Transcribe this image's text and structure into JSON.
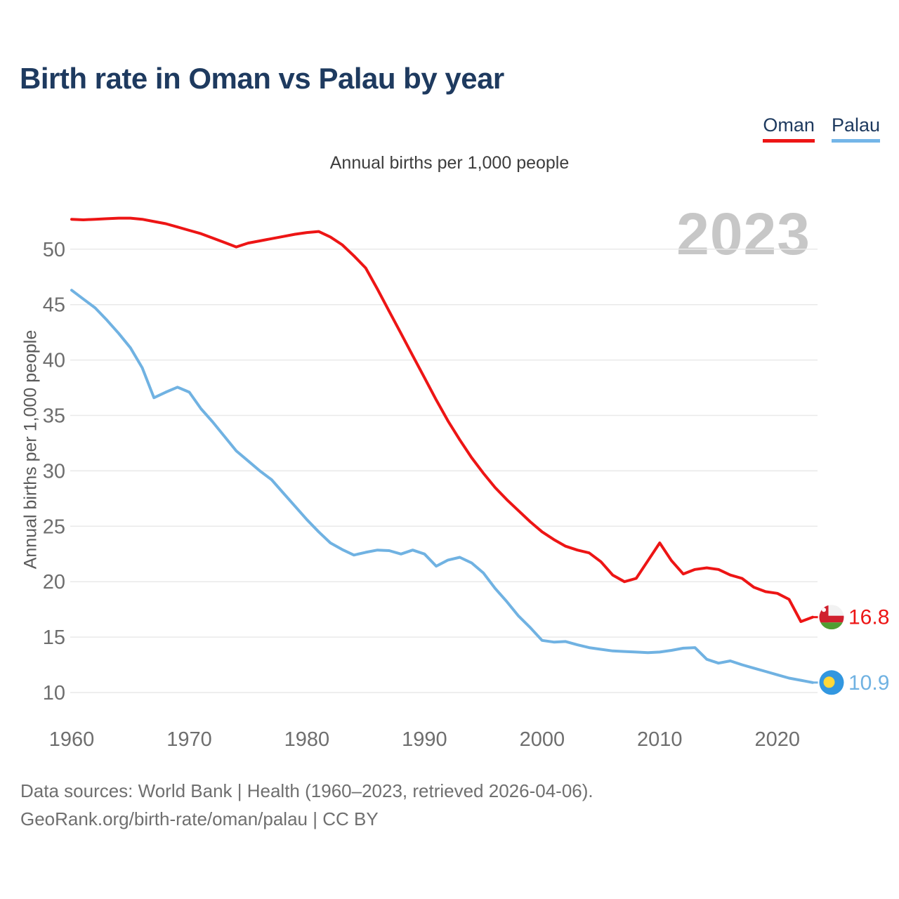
{
  "header": {
    "title": "Birth rate in Oman vs Palau by year"
  },
  "legend": {
    "items": [
      {
        "label": "Oman",
        "color": "#ed1515"
      },
      {
        "label": "Palau",
        "color": "#74b6e8"
      }
    ]
  },
  "subtitle": "Annual births per 1,000 people",
  "watermark": "2023",
  "y_axis_title": "Annual births per 1,000 people",
  "footer": {
    "line1": "Data sources: World Bank | Health (1960–2023, retrieved 2026-04-06).",
    "line2": "GeoRank.org/birth-rate/oman/palau | CC BY"
  },
  "colors": {
    "oman_line": "#ed1515",
    "palau_line": "#70b2e2",
    "grid": "#e9e9e9",
    "tick_text": "#6e6e6e",
    "title_navy": "#1e3a5f",
    "watermark_gray": "#c7c7c7",
    "oman_flag_red": "#d0202e",
    "oman_flag_green": "#4f9e33",
    "palau_flag_blue": "#3297e0",
    "palau_flag_yellow": "#ffd838"
  },
  "chart_data": {
    "type": "line",
    "title": "Birth rate in Oman vs Palau by year",
    "subtitle": "Annual births per 1,000 people",
    "xlabel": "",
    "ylabel": "Annual births per 1,000 people",
    "xlim": [
      1960,
      2023
    ],
    "ylim": [
      10,
      53.5
    ],
    "grid": true,
    "legend_position": "top-right",
    "x_ticks": [
      1960,
      1970,
      1980,
      1990,
      2000,
      2010,
      2020
    ],
    "y_ticks": [
      10,
      15,
      20,
      25,
      30,
      35,
      40,
      45,
      50
    ],
    "x": [
      1960,
      1961,
      1962,
      1963,
      1964,
      1965,
      1966,
      1967,
      1968,
      1969,
      1970,
      1971,
      1972,
      1973,
      1974,
      1975,
      1976,
      1977,
      1978,
      1979,
      1980,
      1981,
      1982,
      1983,
      1984,
      1985,
      1986,
      1987,
      1988,
      1989,
      1990,
      1991,
      1992,
      1993,
      1994,
      1995,
      1996,
      1997,
      1998,
      1999,
      2000,
      2001,
      2002,
      2003,
      2004,
      2005,
      2006,
      2007,
      2008,
      2009,
      2010,
      2011,
      2012,
      2013,
      2014,
      2015,
      2016,
      2017,
      2018,
      2019,
      2020,
      2021,
      2022,
      2023
    ],
    "series": [
      {
        "name": "Oman",
        "color": "#ed1515",
        "end_label": "16.8",
        "values": [
          52.7,
          52.65,
          52.7,
          52.75,
          52.8,
          52.8,
          52.7,
          52.5,
          52.3,
          52.0,
          51.7,
          51.4,
          51.0,
          50.6,
          50.2,
          50.55,
          50.75,
          50.95,
          51.15,
          51.35,
          51.5,
          51.6,
          51.1,
          50.4,
          49.4,
          48.3,
          46.4,
          44.4,
          42.4,
          40.4,
          38.4,
          36.4,
          34.5,
          32.8,
          31.2,
          29.8,
          28.5,
          27.4,
          26.4,
          25.4,
          24.5,
          23.8,
          23.2,
          22.85,
          22.6,
          21.8,
          20.6,
          20.0,
          20.3,
          21.9,
          23.5,
          21.9,
          20.7,
          21.1,
          21.25,
          21.1,
          20.6,
          20.3,
          19.5,
          19.1,
          18.95,
          18.4,
          16.4,
          16.8
        ]
      },
      {
        "name": "Palau",
        "color": "#70b2e2",
        "end_label": "10.9",
        "values": [
          46.3,
          45.5,
          44.7,
          43.6,
          42.4,
          41.1,
          39.3,
          36.6,
          37.1,
          37.55,
          37.1,
          35.6,
          34.4,
          33.1,
          31.8,
          30.9,
          30.0,
          29.2,
          28.0,
          26.8,
          25.6,
          24.5,
          23.5,
          22.9,
          22.4,
          22.65,
          22.85,
          22.8,
          22.5,
          22.85,
          22.5,
          21.4,
          21.95,
          22.2,
          21.7,
          20.8,
          19.4,
          18.2,
          16.9,
          15.85,
          14.7,
          14.55,
          14.6,
          14.3,
          14.05,
          13.9,
          13.75,
          13.7,
          13.65,
          13.6,
          13.65,
          13.8,
          14.0,
          14.05,
          13.0,
          12.65,
          12.85,
          12.5,
          12.2,
          11.9,
          11.6,
          11.3,
          11.1,
          10.9
        ]
      }
    ]
  }
}
